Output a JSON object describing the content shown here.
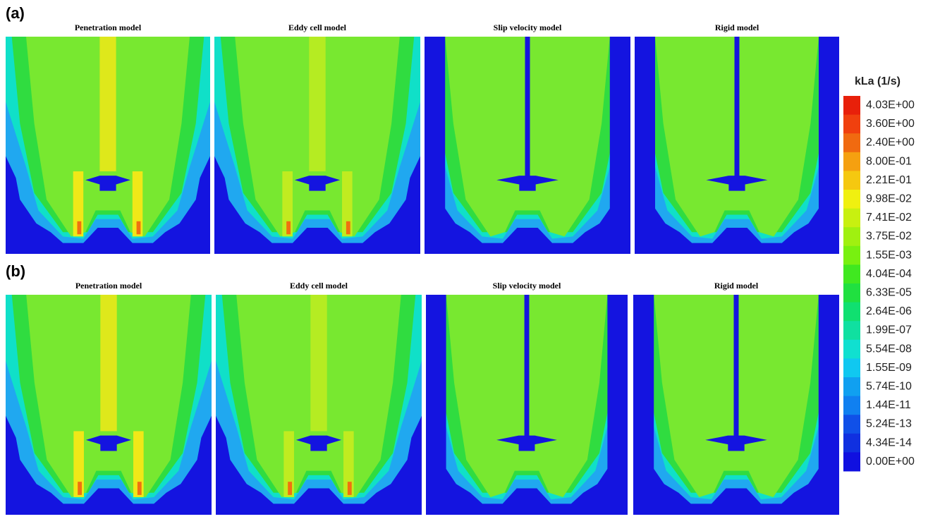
{
  "panels": {
    "a": {
      "label": "(a)",
      "titles": [
        "Penetration model",
        "Eddy cell model",
        "Slip velocity model",
        "Rigid model"
      ]
    },
    "b": {
      "label": "(b)",
      "titles": [
        "Penetration model",
        "Eddy cell model",
        "Slip velocity model",
        "Rigid model"
      ]
    }
  },
  "colorbar": {
    "title": "kLa (1/s)",
    "labels": [
      "4.03E+00",
      "3.60E+00",
      "2.40E+00",
      "8.00E-01",
      "2.21E-01",
      "9.98E-02",
      "7.41E-02",
      "3.75E-02",
      "1.55E-03",
      "4.04E-04",
      "6.33E-05",
      "2.64E-06",
      "1.99E-07",
      "5.54E-08",
      "1.55E-09",
      "5.74E-10",
      "1.44E-11",
      "5.24E-13",
      "4.34E-14",
      "0.00E+00"
    ],
    "colors": [
      "#e8200a",
      "#f0400e",
      "#f06a10",
      "#f5a010",
      "#f5c810",
      "#f0f010",
      "#c8f010",
      "#a0f010",
      "#78f010",
      "#40e820",
      "#20e040",
      "#10e070",
      "#10e0a0",
      "#10e0d0",
      "#10c8f0",
      "#10a0f0",
      "#1080f0",
      "#1050e8",
      "#1030e0",
      "#1010e0"
    ]
  }
}
